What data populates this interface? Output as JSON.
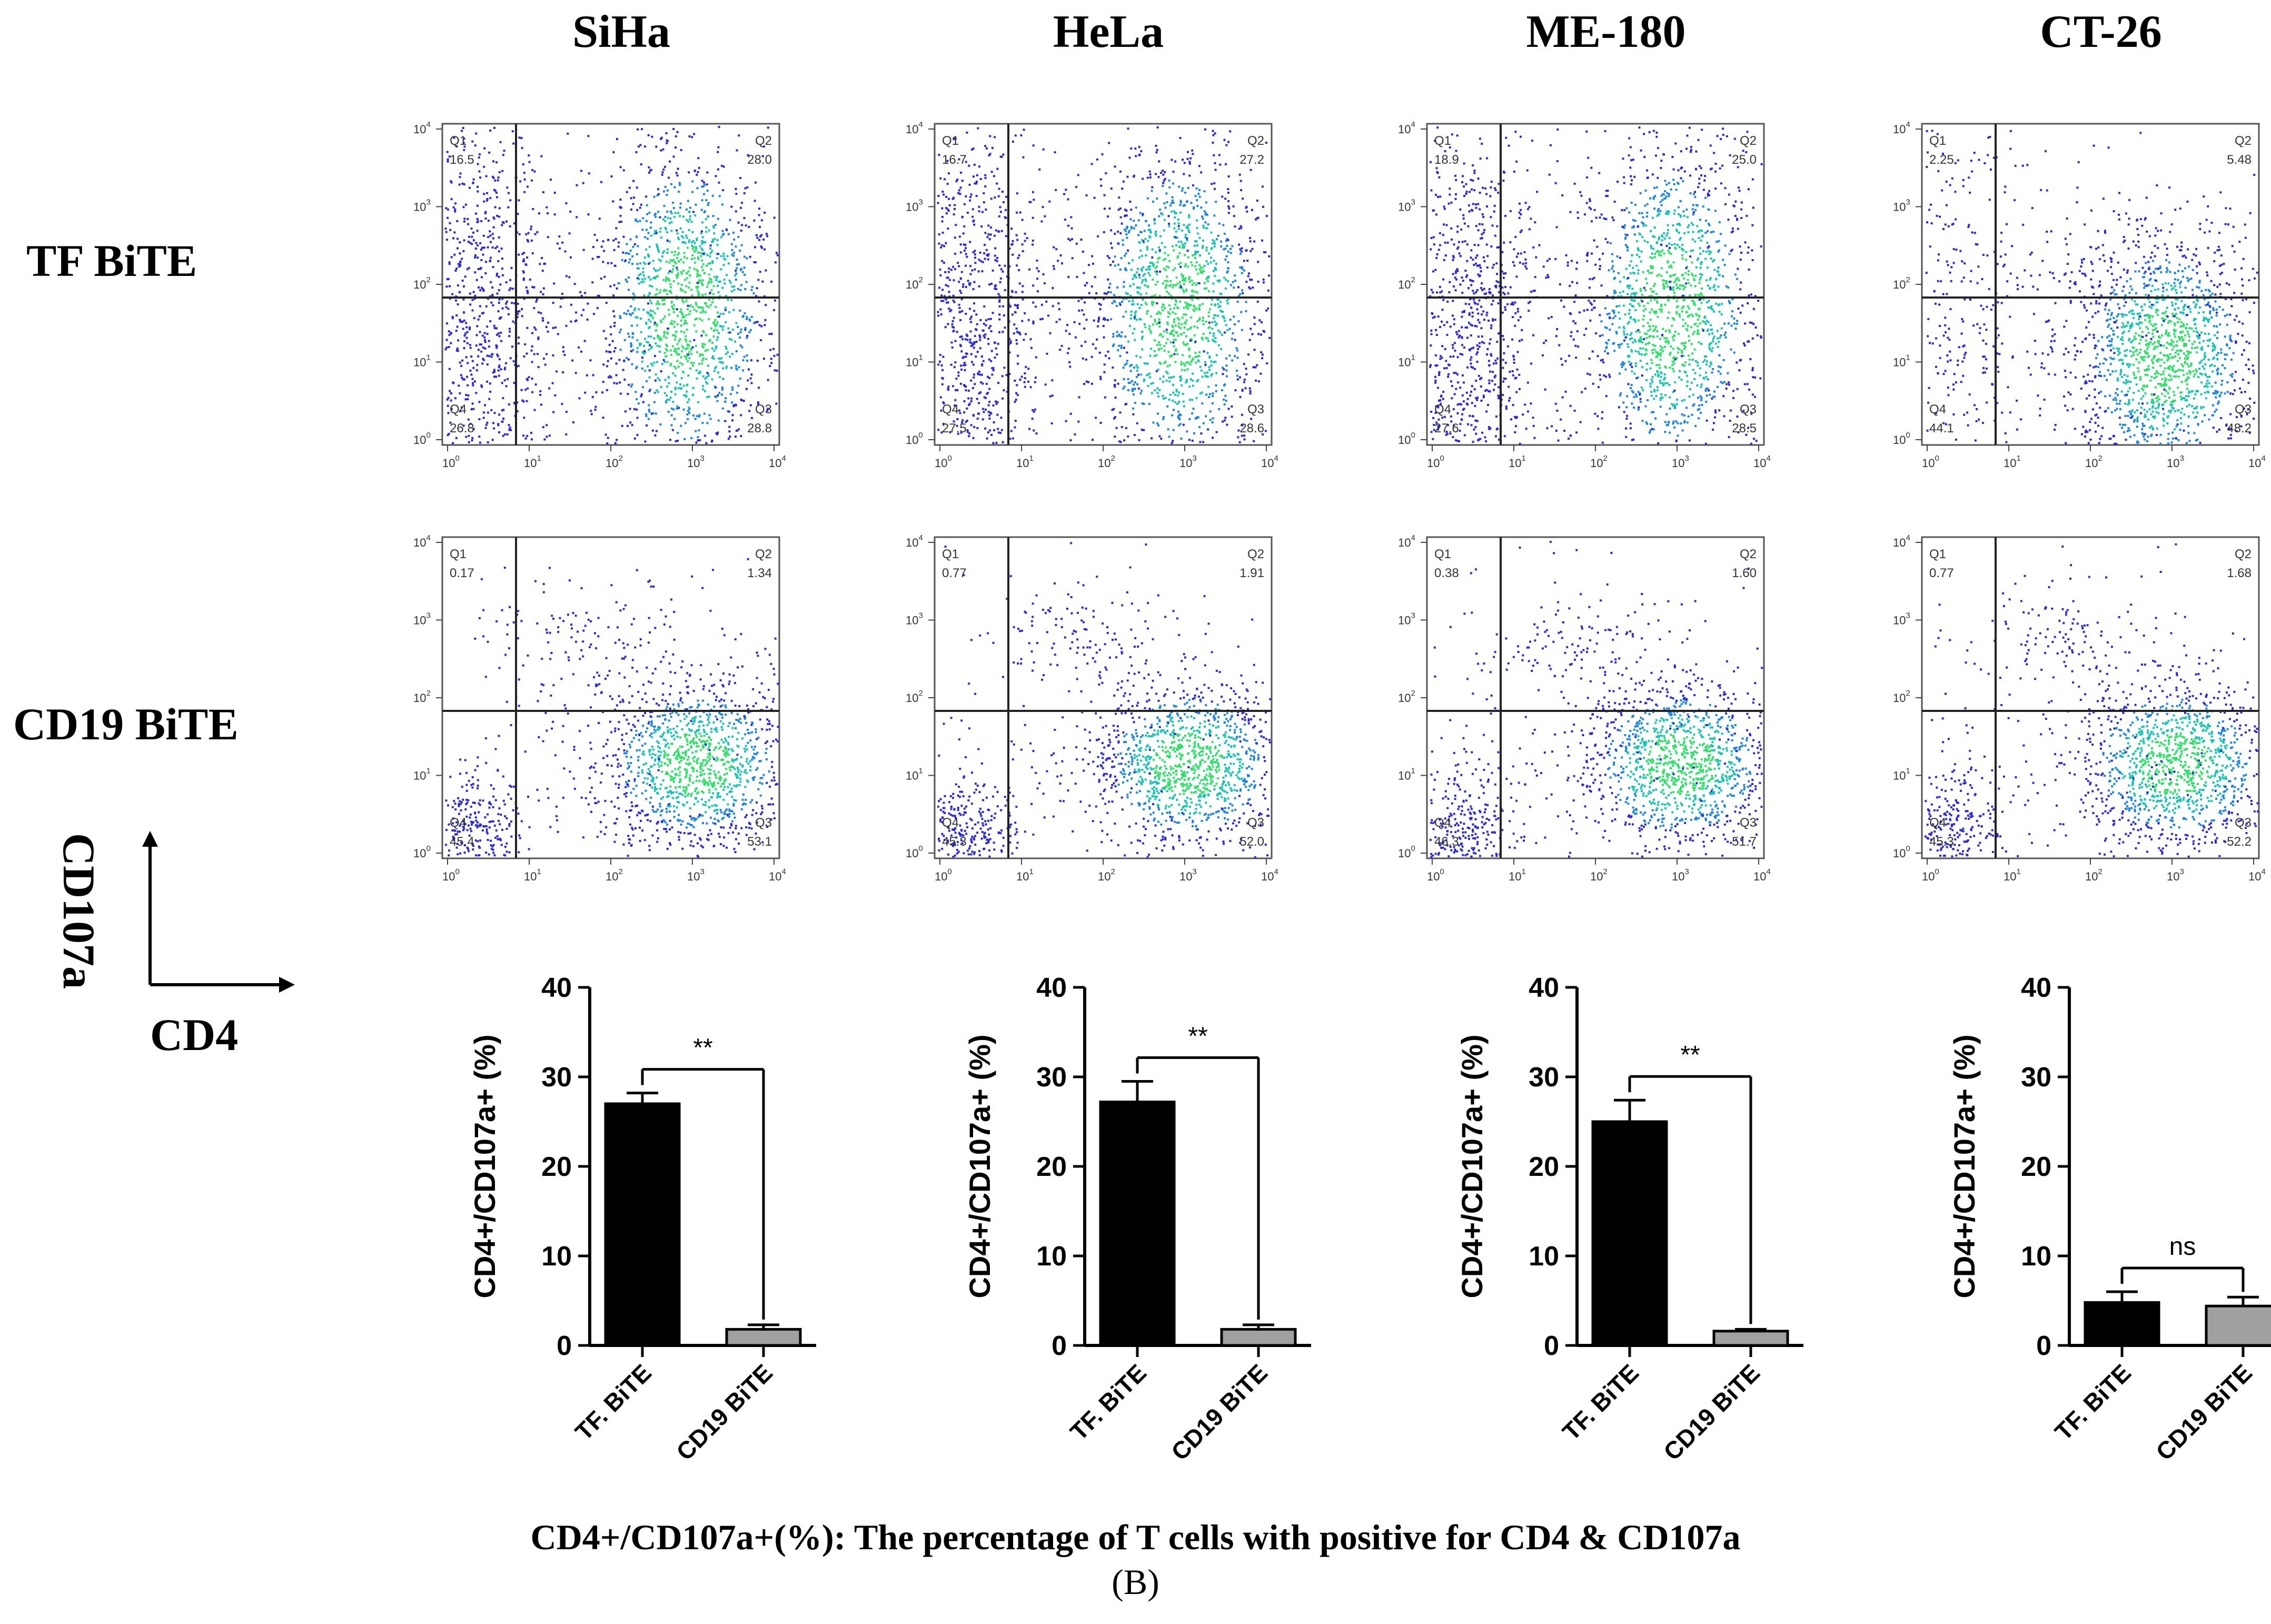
{
  "columns": [
    "SiHa",
    "HeLa",
    "ME-180",
    "CT-26"
  ],
  "rows": [
    "TF BiTE",
    "CD19 BiTE"
  ],
  "axes_legend": {
    "y": "CD107a",
    "x": "CD4"
  },
  "flow_plots": [
    [
      {
        "Q1": "16.5",
        "Q2": "28.0",
        "Q3": "28.8",
        "Q4": "26.8"
      },
      {
        "Q1": "16.7",
        "Q2": "27.2",
        "Q3": "28.6",
        "Q4": "27.5"
      },
      {
        "Q1": "18.9",
        "Q2": "25.0",
        "Q3": "28.5",
        "Q4": "27.6"
      },
      {
        "Q1": "2.25",
        "Q2": "5.48",
        "Q3": "48.2",
        "Q4": "44.1"
      }
    ],
    [
      {
        "Q1": "0.17",
        "Q2": "1.34",
        "Q3": "53.1",
        "Q4": "45.4"
      },
      {
        "Q1": "0.77",
        "Q2": "1.91",
        "Q3": "52.0",
        "Q4": "45.3"
      },
      {
        "Q1": "0.38",
        "Q2": "1.60",
        "Q3": "51.7",
        "Q4": "46.3"
      },
      {
        "Q1": "0.77",
        "Q2": "1.68",
        "Q3": "52.2",
        "Q4": "45.3"
      }
    ]
  ],
  "quadrant_labels": [
    "Q1",
    "Q2",
    "Q3",
    "Q4"
  ],
  "flow_ticks": [
    "10",
    "0",
    "1",
    "2",
    "3",
    "4"
  ],
  "chart_data": [
    {
      "type": "bar",
      "title": "SiHa",
      "categories": [
        "TF. BiTE",
        "CD19 BiTE"
      ],
      "values": [
        27.0,
        1.8
      ],
      "errors": [
        1.2,
        0.5
      ],
      "colors": [
        "#000000",
        "#a0a0a0"
      ],
      "ylabel": "CD4+/CD107a+ (%)",
      "ylim": [
        0,
        40
      ],
      "yticks": [
        "0",
        "10",
        "20",
        "30",
        "40"
      ],
      "significance": "**"
    },
    {
      "type": "bar",
      "title": "HeLa",
      "categories": [
        "TF. BiTE",
        "CD19 BiTE"
      ],
      "values": [
        27.2,
        1.8
      ],
      "errors": [
        2.3,
        0.5
      ],
      "colors": [
        "#000000",
        "#a0a0a0"
      ],
      "ylabel": "CD4+/CD107a+ (%)",
      "ylim": [
        0,
        40
      ],
      "yticks": [
        "0",
        "10",
        "20",
        "30",
        "40"
      ],
      "significance": "**"
    },
    {
      "type": "bar",
      "title": "ME-180",
      "categories": [
        "TF. BiTE",
        "CD19 BiTE"
      ],
      "values": [
        25.0,
        1.6
      ],
      "errors": [
        2.4,
        0.2
      ],
      "colors": [
        "#000000",
        "#a0a0a0"
      ],
      "ylabel": "CD4+/CD107a+ (%)",
      "ylim": [
        0,
        40
      ],
      "yticks": [
        "0",
        "10",
        "20",
        "30",
        "40"
      ],
      "significance": "**"
    },
    {
      "type": "bar",
      "title": "CT-26",
      "categories": [
        "TF. BiTE",
        "CD19 BiTE"
      ],
      "values": [
        4.8,
        4.4
      ],
      "errors": [
        1.2,
        1.0
      ],
      "colors": [
        "#000000",
        "#a0a0a0"
      ],
      "ylabel": "CD4+/CD107a+ (%)",
      "ylim": [
        0,
        40
      ],
      "yticks": [
        "0",
        "10",
        "20",
        "30",
        "40"
      ],
      "significance": "ns"
    }
  ],
  "caption": "CD4+/CD107a+(%): The percentage of T cells with positive for CD4 & CD107a",
  "panel_label": "(B)"
}
